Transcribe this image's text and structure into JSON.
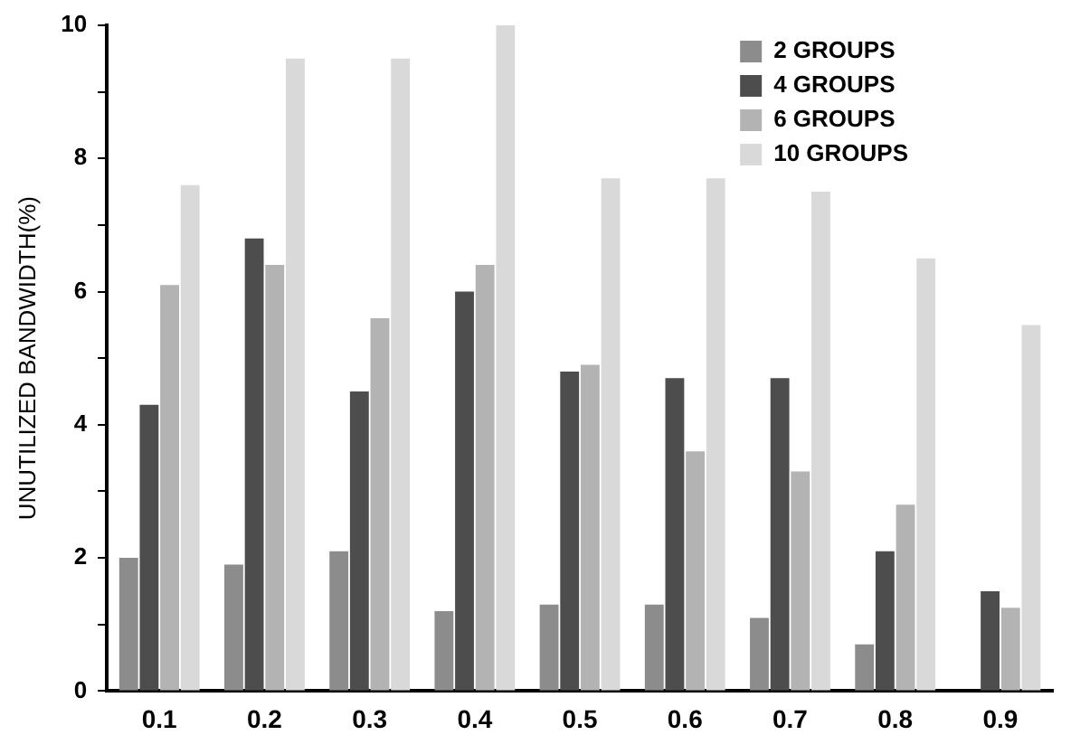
{
  "chart_data": {
    "type": "bar",
    "ylabel": "UNUTILIZED BANDWIDTH(%)",
    "categories": [
      "0.1",
      "0.2",
      "0.3",
      "0.4",
      "0.5",
      "0.6",
      "0.7",
      "0.8",
      "0.9"
    ],
    "series": [
      {
        "name": "2 GROUPS",
        "color": "#8c8c8c",
        "values": [
          2.0,
          1.9,
          2.1,
          1.2,
          1.3,
          1.3,
          1.1,
          0.7,
          null
        ]
      },
      {
        "name": "4 GROUPS",
        "color": "#4d4d4d",
        "values": [
          4.3,
          6.8,
          4.5,
          6.0,
          4.8,
          4.7,
          4.7,
          2.1,
          1.5
        ]
      },
      {
        "name": "6 GROUPS",
        "color": "#b3b3b3",
        "values": [
          6.1,
          6.4,
          5.6,
          6.4,
          4.9,
          3.6,
          3.3,
          2.8,
          1.25
        ]
      },
      {
        "name": "10 GROUPS",
        "color": "#d9d9d9",
        "values": [
          7.6,
          9.5,
          9.5,
          10,
          7.7,
          7.7,
          7.5,
          6.5,
          5.5
        ]
      }
    ],
    "ylim": [
      0,
      10
    ],
    "yticks": [
      0,
      {
        "value": 1,
        "label": null
      },
      2,
      {
        "value": 3,
        "label": null
      },
      4,
      {
        "value": 5,
        "label": null
      },
      6,
      {
        "value": 7,
        "label": null
      },
      8,
      {
        "value": 9,
        "label": null
      },
      10
    ],
    "grid": false,
    "legend": "top right"
  }
}
